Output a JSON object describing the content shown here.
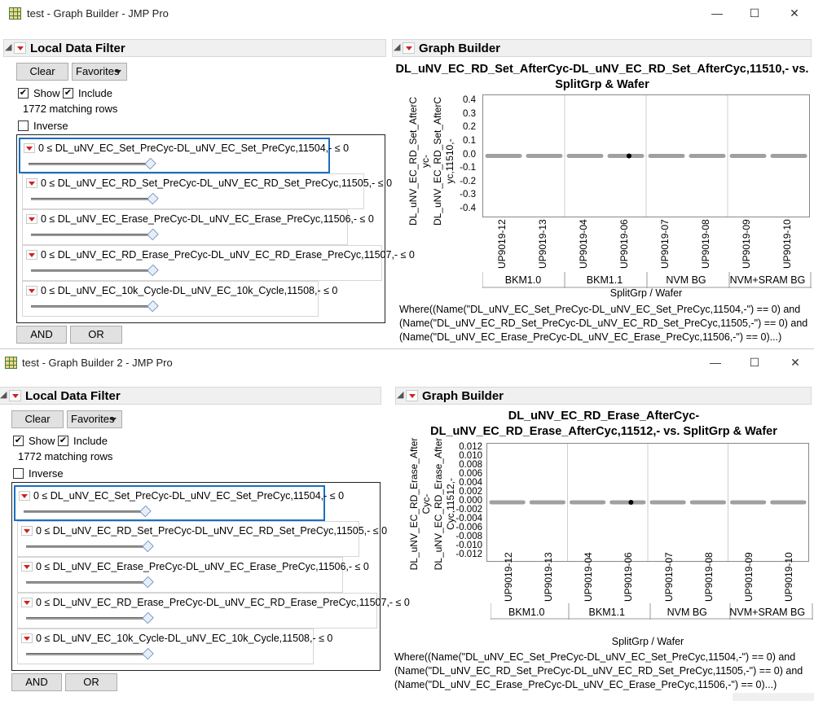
{
  "windows": [
    {
      "title": "test - Graph Builder - JMP Pro",
      "controls": {
        "minimize": "—",
        "maximize": "☐",
        "close": "✕"
      },
      "filter": {
        "title": "Local Data Filter",
        "clear_label": "Clear",
        "favorites_label": "Favorites",
        "show_label": "Show",
        "include_label": "Include",
        "matching_rows": "1772 matching rows",
        "inverse_label": "Inverse",
        "rows": [
          {
            "text": "0  ≤  DL_uNV_EC_Set_PreCyc-DL_uNV_EC_Set_PreCyc,11504,-  ≤ 0",
            "selected": true
          },
          {
            "text": "0  ≤  DL_uNV_EC_RD_Set_PreCyc-DL_uNV_EC_RD_Set_PreCyc,11505,-  ≤ 0",
            "selected": false
          },
          {
            "text": "0  ≤  DL_uNV_EC_Erase_PreCyc-DL_uNV_EC_Erase_PreCyc,11506,-  ≤ 0",
            "selected": false
          },
          {
            "text": "0  ≤  DL_uNV_EC_RD_Erase_PreCyc-DL_uNV_EC_RD_Erase_PreCyc,11507,-  ≤ 0",
            "selected": false
          },
          {
            "text": "0  ≤  DL_uNV_EC_10k_Cycle-DL_uNV_EC_10k_Cycle,11508,-  ≤ 0",
            "selected": false
          }
        ],
        "and_label": "AND",
        "or_label": "OR"
      },
      "graph": {
        "panel_title": "Graph Builder",
        "title_line1": "DL_uNV_EC_RD_Set_AfterCyc-DL_uNV_EC_RD_Set_AfterCyc,11510,- vs.",
        "title_line2": "SplitGrp & Wafer",
        "ylabel_lines": [
          "DL_uNV_EC_RD_Set_AfterC",
          "yc-",
          "DL_uNV_EC_RD_Set_AfterC",
          "yc,11510,-"
        ],
        "xlabel": "SplitGrp / Wafer",
        "where_lines": [
          "Where((Name(\"DL_uNV_EC_Set_PreCyc-DL_uNV_EC_Set_PreCyc,11504,-\") == 0) and",
          "(Name(\"DL_uNV_EC_RD_Set_PreCyc-DL_uNV_EC_RD_Set_PreCyc,11505,-\") == 0) and",
          "(Name(\"DL_uNV_EC_Erase_PreCyc-DL_uNV_EC_Erase_PreCyc,11506,-\") == 0)...)"
        ]
      },
      "chart_data": {
        "type": "scatter",
        "title": "DL_uNV_EC_RD_Set_AfterCyc-DL_uNV_EC_RD_Set_AfterCyc,11510,- vs. SplitGrp & Wafer",
        "xlabel": "SplitGrp / Wafer",
        "ylabel": "DL_uNV_EC_RD_Set_AfterCyc-DL_uNV_EC_RD_Set_AfterCyc,11510,-",
        "yticks": [
          "0.4",
          "0.3",
          "0.2",
          "0.1",
          "0.0",
          "-0.1",
          "-0.2",
          "-0.3",
          "-0.4"
        ],
        "ylim": [
          -0.45,
          0.45
        ],
        "groups": [
          {
            "name": "BKM1.0",
            "wafers": [
              "UP9019-12",
              "UP9019-13"
            ]
          },
          {
            "name": "BKM1.1",
            "wafers": [
              "UP9019-04",
              "UP9019-06"
            ]
          },
          {
            "name": "NVM BG",
            "wafers": [
              "UP9019-07",
              "UP9019-08"
            ]
          },
          {
            "name": "NVM+SRAM BG",
            "wafers": [
              "UP9019-09",
              "UP9019-10"
            ]
          }
        ],
        "values": [
          0,
          0,
          0,
          0,
          0,
          0,
          0,
          0
        ],
        "grid": true
      }
    },
    {
      "title": "test - Graph Builder 2 - JMP Pro",
      "controls": {
        "minimize": "—",
        "maximize": "☐",
        "close": "✕"
      },
      "filter": {
        "title": "Local Data Filter",
        "clear_label": "Clear",
        "favorites_label": "Favorites",
        "show_label": "Show",
        "include_label": "Include",
        "matching_rows": "1772 matching rows",
        "inverse_label": "Inverse",
        "rows": [
          {
            "text": "0  ≤  DL_uNV_EC_Set_PreCyc-DL_uNV_EC_Set_PreCyc,11504,-  ≤ 0",
            "selected": true
          },
          {
            "text": "0  ≤  DL_uNV_EC_RD_Set_PreCyc-DL_uNV_EC_RD_Set_PreCyc,11505,-  ≤ 0",
            "selected": false
          },
          {
            "text": "0  ≤  DL_uNV_EC_Erase_PreCyc-DL_uNV_EC_Erase_PreCyc,11506,-  ≤ 0",
            "selected": false
          },
          {
            "text": "0  ≤  DL_uNV_EC_RD_Erase_PreCyc-DL_uNV_EC_RD_Erase_PreCyc,11507,-  ≤ 0",
            "selected": false
          },
          {
            "text": "0  ≤  DL_uNV_EC_10k_Cycle-DL_uNV_EC_10k_Cycle,11508,-  ≤ 0",
            "selected": false
          }
        ],
        "and_label": "AND",
        "or_label": "OR"
      },
      "graph": {
        "panel_title": "Graph Builder",
        "title_line1": "DL_uNV_EC_RD_Erase_AfterCyc-",
        "title_line2": "DL_uNV_EC_RD_Erase_AfterCyc,11512,- vs. SplitGrp & Wafer",
        "ylabel_lines": [
          "DL_uNV_EC_RD_Erase_After",
          "Cyc-",
          "DL_uNV_EC_RD_Erase_After",
          "Cyc,11512,-"
        ],
        "xlabel": "SplitGrp / Wafer",
        "where_lines": [
          "Where((Name(\"DL_uNV_EC_Set_PreCyc-DL_uNV_EC_Set_PreCyc,11504,-\") == 0) and",
          "(Name(\"DL_uNV_EC_RD_Set_PreCyc-DL_uNV_EC_RD_Set_PreCyc,11505,-\") == 0) and",
          "(Name(\"DL_uNV_EC_Erase_PreCyc-DL_uNV_EC_Erase_PreCyc,11506,-\") == 0)...)"
        ]
      },
      "chart_data": {
        "type": "scatter",
        "title": "DL_uNV_EC_RD_Erase_AfterCyc-DL_uNV_EC_RD_Erase_AfterCyc,11512,- vs. SplitGrp & Wafer",
        "xlabel": "SplitGrp / Wafer",
        "ylabel": "DL_uNV_EC_RD_Erase_AfterCyc-DL_uNV_EC_RD_Erase_AfterCyc,11512,-",
        "yticks": [
          "0.012",
          "0.010",
          "0.008",
          "0.006",
          "0.004",
          "0.002",
          "0.000",
          "-0.002",
          "-0.004",
          "-0.006",
          "-0.008",
          "-0.010",
          "-0.012"
        ],
        "ylim": [
          -0.013,
          0.013
        ],
        "groups": [
          {
            "name": "BKM1.0",
            "wafers": [
              "UP9019-12",
              "UP9019-13"
            ]
          },
          {
            "name": "BKM1.1",
            "wafers": [
              "UP9019-04",
              "UP9019-06"
            ]
          },
          {
            "name": "NVM BG",
            "wafers": [
              "UP9019-07",
              "UP9019-08"
            ]
          },
          {
            "name": "NVM+SRAM BG",
            "wafers": [
              "UP9019-09",
              "UP9019-10"
            ]
          }
        ],
        "values": [
          0,
          0,
          0,
          0,
          0,
          0,
          0,
          0
        ],
        "grid": true
      }
    }
  ],
  "colors": {
    "selection": "#1a6ec2",
    "points": "#a0a0a0",
    "red_triangle": "#d02020"
  }
}
